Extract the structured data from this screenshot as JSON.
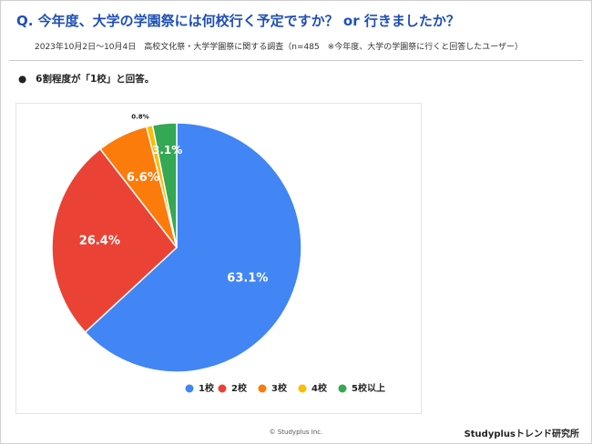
{
  "header": {
    "question": "Q. 今年度、大学の学園祭には何校行く予定ですか？ or 行きましたか？",
    "survey_note": "2023年10月2日〜10月4日　高校文化祭・大学学園祭に関する調査（n=485　※今年度、大学の学園祭に行くと回答したユーザー）"
  },
  "summary": {
    "bullet": "●",
    "text": "6割程度が「1校」と回答。"
  },
  "colors": {
    "title_blue": "#1f4fb5",
    "series": [
      "#4285f4",
      "#ea4335",
      "#fb7c0b",
      "#fbbc04",
      "#34a853"
    ]
  },
  "chart_data": {
    "type": "pie",
    "categories": [
      "1校",
      "2校",
      "3校",
      "4校",
      "5校以上"
    ],
    "values": [
      63.1,
      26.4,
      6.6,
      0.8,
      3.1
    ],
    "data_labels": [
      "63.1%",
      "26.4%",
      "6.6%",
      "0.8%",
      "3.1%"
    ],
    "colors": [
      "#4285f4",
      "#ea4335",
      "#fb7c0b",
      "#fbbc04",
      "#34a853"
    ],
    "legend_position": "bottom",
    "start_angle": "top, clockwise"
  },
  "footer": {
    "copyright": "© Studyplus Inc.",
    "brand": "Studyplusトレンド研究所"
  }
}
